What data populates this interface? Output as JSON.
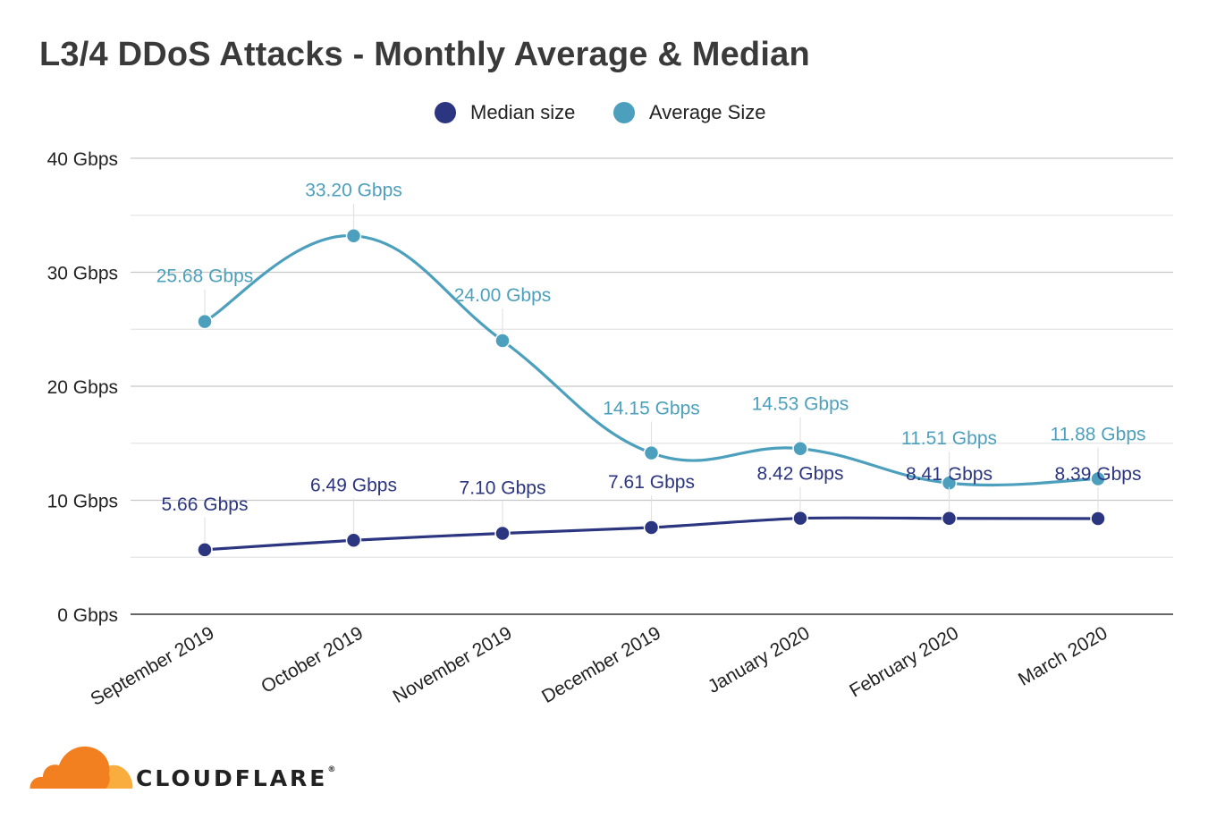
{
  "chart_data": {
    "type": "line",
    "title": "L3/4 DDoS Attacks - Monthly Average & Median",
    "categories": [
      "September 2019",
      "October 2019",
      "November 2019",
      "December 2019",
      "January 2020",
      "February 2020",
      "March 2020"
    ],
    "series": [
      {
        "name": "Median size",
        "color": "#2b3580",
        "values": [
          5.66,
          6.49,
          7.1,
          7.61,
          8.42,
          8.41,
          8.39
        ],
        "labels": [
          "5.66 Gbps",
          "6.49 Gbps",
          "7.10 Gbps",
          "7.61 Gbps",
          "8.42 Gbps",
          "8.41 Gbps",
          "8.39 Gbps"
        ]
      },
      {
        "name": "Average Size",
        "color": "#4da0bd",
        "values": [
          25.68,
          33.2,
          24.0,
          14.15,
          14.53,
          11.51,
          11.88
        ],
        "labels": [
          "25.68 Gbps",
          "33.20 Gbps",
          "24.00 Gbps",
          "14.15 Gbps",
          "14.53 Gbps",
          "11.51 Gbps",
          "11.88 Gbps"
        ]
      }
    ],
    "ylim": [
      0,
      40
    ],
    "yticks": [
      0,
      10,
      20,
      30,
      40
    ],
    "ytick_labels": [
      "0 Gbps",
      "10 Gbps",
      "20 Gbps",
      "30 Gbps",
      "40 Gbps"
    ],
    "xlabel": "",
    "ylabel": "",
    "grid": true,
    "legend": "top-center"
  },
  "brand": {
    "name": "CLOUDFLARE",
    "trademark": "®",
    "colors": {
      "orange": "#f38020",
      "light_orange": "#faad3f"
    }
  }
}
